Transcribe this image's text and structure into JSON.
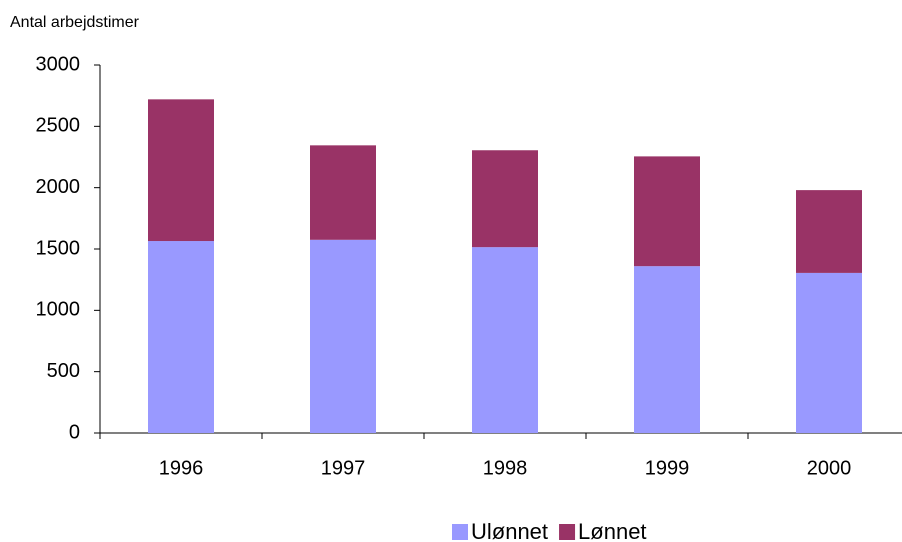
{
  "chart_data": {
    "type": "stacked_bar",
    "y_label": "Antal arbejdstimer",
    "categories": [
      "1996",
      "1997",
      "1998",
      "1999",
      "2000"
    ],
    "series": [
      {
        "name": "Ulønnet",
        "color": "#9999ff",
        "values": [
          1565,
          1575,
          1515,
          1360,
          1305
        ]
      },
      {
        "name": "Lønnet",
        "color": "#993366",
        "values": [
          1155,
          770,
          790,
          895,
          675
        ]
      }
    ],
    "ylim": [
      0,
      3000
    ],
    "yticks": [
      0,
      500,
      1000,
      1500,
      2000,
      2500,
      3000
    ],
    "legend": "bottom"
  }
}
